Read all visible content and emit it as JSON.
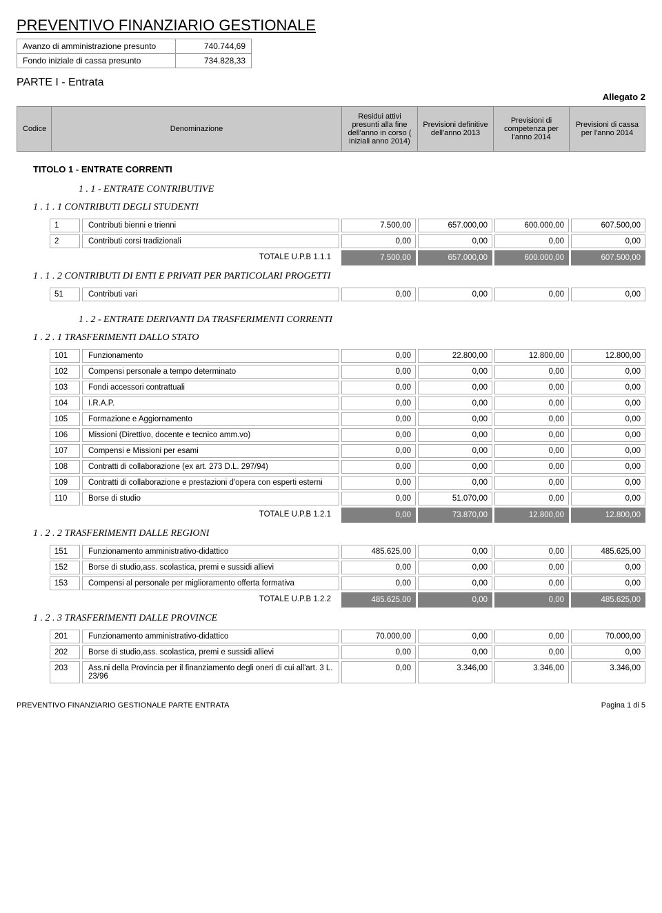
{
  "page_title": "PREVENTIVO FINANZIARIO GESTIONALE",
  "topbox": {
    "r1_label": "Avanzo di amministrazione presunto",
    "r1_value": "740.744,69",
    "r2_label": "Fondo iniziale di cassa presunto",
    "r2_value": "734.828,33"
  },
  "parte": "PARTE I - Entrata",
  "allegato": "Allegato 2",
  "header": {
    "codice": "Codice",
    "denominazione": "Denominazione",
    "c1": "Residui attivi presunti alla fine dell'anno in corso ( iniziali anno 2014)",
    "c2": "Previsioni definitive dell'anno 2013",
    "c3": "Previsioni di competenza per l'anno 2014",
    "c4": "Previsioni di cassa per l'anno 2014"
  },
  "titolo1": "TITOLO 1   -   ENTRATE CORRENTI",
  "s11_title": "1 . 1   -   ENTRATE CONTRIBUTIVE",
  "s111_title": "1 . 1 . 1 CONTRIBUTI DEGLI STUDENTI",
  "s111_rows": [
    {
      "code": "1",
      "desc": "Contributi bienni e trienni",
      "v1": "7.500,00",
      "v2": "657.000,00",
      "v3": "600.000,00",
      "v4": "607.500,00"
    },
    {
      "code": "2",
      "desc": "Contributi corsi tradizionali",
      "v1": "0,00",
      "v2": "0,00",
      "v3": "0,00",
      "v4": "0,00"
    }
  ],
  "s111_total_label": "TOTALE U.P.B    1.1.1",
  "s111_total": {
    "v1": "7.500,00",
    "v2": "657.000,00",
    "v3": "600.000,00",
    "v4": "607.500,00"
  },
  "s112_title": "1 . 1 . 2 CONTRIBUTI DI ENTI E PRIVATI PER PARTICOLARI PROGETTI",
  "s112_rows": [
    {
      "code": "51",
      "desc": "Contributi vari",
      "v1": "0,00",
      "v2": "0,00",
      "v3": "0,00",
      "v4": "0,00"
    }
  ],
  "s12_title": "1 . 2   -   ENTRATE DERIVANTI DA TRASFERIMENTI CORRENTI",
  "s121_title": "1 . 2 . 1 TRASFERIMENTI DALLO STATO",
  "s121_rows": [
    {
      "code": "101",
      "desc": "Funzionamento",
      "v1": "0,00",
      "v2": "22.800,00",
      "v3": "12.800,00",
      "v4": "12.800,00"
    },
    {
      "code": "102",
      "desc": "Compensi personale a tempo determinato",
      "v1": "0,00",
      "v2": "0,00",
      "v3": "0,00",
      "v4": "0,00"
    },
    {
      "code": "103",
      "desc": "Fondi accessori contrattuali",
      "v1": "0,00",
      "v2": "0,00",
      "v3": "0,00",
      "v4": "0,00"
    },
    {
      "code": "104",
      "desc": "I.R.A.P.",
      "v1": "0,00",
      "v2": "0,00",
      "v3": "0,00",
      "v4": "0,00"
    },
    {
      "code": "105",
      "desc": "Formazione e Aggiornamento",
      "v1": "0,00",
      "v2": "0,00",
      "v3": "0,00",
      "v4": "0,00"
    },
    {
      "code": "106",
      "desc": "Missioni (Direttivo, docente e tecnico amm.vo)",
      "v1": "0,00",
      "v2": "0,00",
      "v3": "0,00",
      "v4": "0,00"
    },
    {
      "code": "107",
      "desc": "Compensi e Missioni per esami",
      "v1": "0,00",
      "v2": "0,00",
      "v3": "0,00",
      "v4": "0,00"
    },
    {
      "code": "108",
      "desc": "Contratti di collaborazione (ex art. 273 D.L. 297/94)",
      "v1": "0,00",
      "v2": "0,00",
      "v3": "0,00",
      "v4": "0,00"
    },
    {
      "code": "109",
      "desc": "Contratti di collaborazione e prestazioni d'opera con esperti esterni",
      "v1": "0,00",
      "v2": "0,00",
      "v3": "0,00",
      "v4": "0,00"
    },
    {
      "code": "110",
      "desc": "Borse di studio",
      "v1": "0,00",
      "v2": "51.070,00",
      "v3": "0,00",
      "v4": "0,00"
    }
  ],
  "s121_total_label": "TOTALE U.P.B    1.2.1",
  "s121_total": {
    "v1": "0,00",
    "v2": "73.870,00",
    "v3": "12.800,00",
    "v4": "12.800,00"
  },
  "s122_title": "1 . 2 . 2 TRASFERIMENTI DALLE REGIONI",
  "s122_rows": [
    {
      "code": "151",
      "desc": "Funzionamento amministrativo-didattico",
      "v1": "485.625,00",
      "v2": "0,00",
      "v3": "0,00",
      "v4": "485.625,00"
    },
    {
      "code": "152",
      "desc": "Borse di studio,ass. scolastica, premi e sussidi allievi",
      "v1": "0,00",
      "v2": "0,00",
      "v3": "0,00",
      "v4": "0,00"
    },
    {
      "code": "153",
      "desc": "Compensi al personale per miglioramento offerta formativa",
      "v1": "0,00",
      "v2": "0,00",
      "v3": "0,00",
      "v4": "0,00"
    }
  ],
  "s122_total_label": "TOTALE U.P.B    1.2.2",
  "s122_total": {
    "v1": "485.625,00",
    "v2": "0,00",
    "v3": "0,00",
    "v4": "485.625,00"
  },
  "s123_title": "1 . 2 . 3 TRASFERIMENTI DALLE PROVINCE",
  "s123_rows": [
    {
      "code": "201",
      "desc": "Funzionamento amministrativo-didattico",
      "v1": "70.000,00",
      "v2": "0,00",
      "v3": "0,00",
      "v4": "70.000,00"
    },
    {
      "code": "202",
      "desc": "Borse di studio,ass. scolastica, premi e sussidi allievi",
      "v1": "0,00",
      "v2": "0,00",
      "v3": "0,00",
      "v4": "0,00"
    },
    {
      "code": "203",
      "desc": "Ass.ni della Provincia per il finanziamento degli oneri di cui all'art. 3 L. 23/96",
      "v1": "0,00",
      "v2": "3.346,00",
      "v3": "3.346,00",
      "v4": "3.346,00"
    }
  ],
  "footer_left": "PREVENTIVO FINANZIARIO GESTIONALE PARTE ENTRATA",
  "footer_right": "Pagina 1 di  5"
}
